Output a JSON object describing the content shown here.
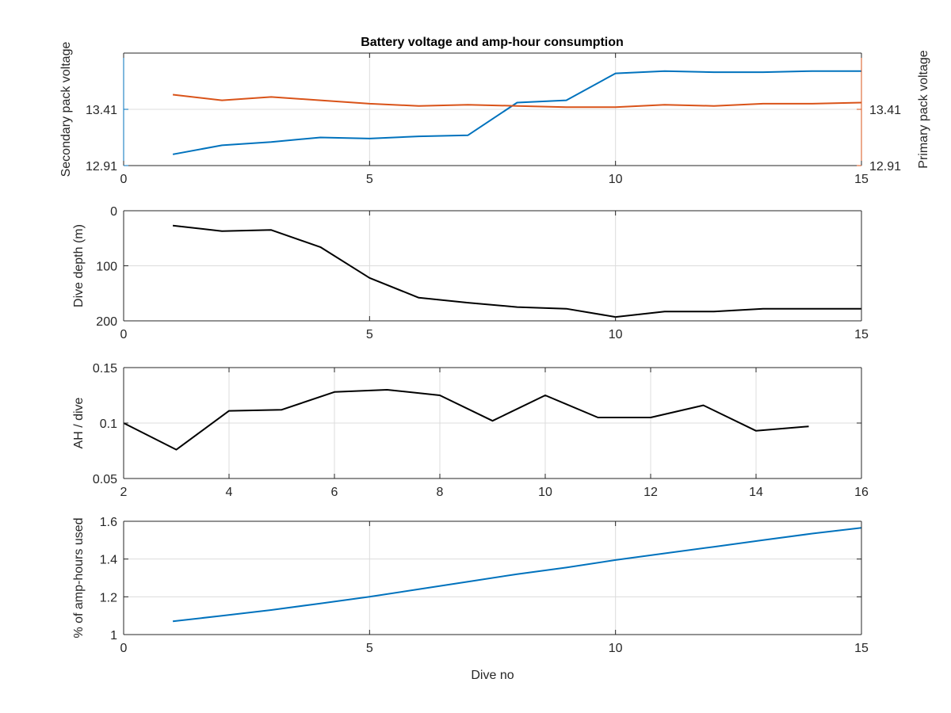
{
  "chart_data": [
    {
      "type": "line",
      "title": "Battery voltage and amp-hour consumption",
      "xlabel": "",
      "ylabel": "Secondary pack voltage",
      "ylabel_right": "Primary pack voltage",
      "xlim": [
        0,
        15
      ],
      "ylim": [
        12.91,
        13.91
      ],
      "ylim_right": [
        12.91,
        13.91
      ],
      "xticks": [
        "0",
        "5",
        "10",
        "15"
      ],
      "yticks": [
        "12.91",
        "13.41"
      ],
      "yticks_right": [
        "12.91",
        "13.41"
      ],
      "grid": true,
      "series": [
        {
          "axis": "left",
          "color": "#0072BD",
          "x": [
            1,
            2,
            3,
            4,
            5,
            6,
            7,
            8,
            9,
            10,
            11,
            12,
            13,
            14,
            15
          ],
          "y": [
            13.01,
            13.09,
            13.12,
            13.16,
            13.15,
            13.17,
            13.18,
            13.47,
            13.49,
            13.73,
            13.75,
            13.74,
            13.74,
            13.75,
            13.75
          ]
        },
        {
          "axis": "right",
          "color": "#D95319",
          "x": [
            1,
            2,
            3,
            4,
            5,
            6,
            7,
            8,
            9,
            10,
            11,
            12,
            13,
            14,
            15
          ],
          "y": [
            13.54,
            13.49,
            13.52,
            13.49,
            13.46,
            13.44,
            13.45,
            13.44,
            13.43,
            13.43,
            13.45,
            13.44,
            13.46,
            13.46,
            13.47
          ]
        }
      ]
    },
    {
      "type": "line",
      "xlabel": "",
      "ylabel": "Dive depth (m)",
      "xlim": [
        0,
        15
      ],
      "ylim": [
        0,
        200
      ],
      "y_reversed": true,
      "xticks": [
        "0",
        "5",
        "10",
        "15"
      ],
      "yticks": [
        "0",
        "100",
        "200"
      ],
      "grid": true,
      "series": [
        {
          "color": "#000000",
          "x": [
            1,
            2,
            3,
            4,
            5,
            6,
            7,
            8,
            9,
            10,
            11,
            12,
            13,
            14,
            15
          ],
          "y": [
            27,
            37,
            35,
            66,
            122,
            158,
            167,
            175,
            178,
            193,
            183,
            183,
            178,
            178,
            178
          ]
        }
      ]
    },
    {
      "type": "line",
      "xlabel": "",
      "ylabel": "AH / dive",
      "xlim": [
        2,
        16
      ],
      "ylim": [
        0.05,
        0.15
      ],
      "xticks": [
        "2",
        "4",
        "6",
        "8",
        "10",
        "12",
        "14",
        "16"
      ],
      "yticks": [
        "0.05",
        "0.1",
        "0.15"
      ],
      "grid": true,
      "series": [
        {
          "color": "#000000",
          "x": [
            2,
            3,
            4,
            5,
            6,
            7,
            8,
            9,
            10,
            11,
            12,
            13,
            14,
            15
          ],
          "y": [
            0.1,
            0.076,
            0.111,
            0.112,
            0.128,
            0.13,
            0.125,
            0.102,
            0.125,
            0.105,
            0.105,
            0.116,
            0.093,
            0.097
          ]
        }
      ]
    },
    {
      "type": "line",
      "xlabel": "Dive no",
      "ylabel": "% of amp-hours used",
      "xlim": [
        0,
        15
      ],
      "ylim": [
        1,
        1.6
      ],
      "xticks": [
        "0",
        "5",
        "10",
        "15"
      ],
      "yticks": [
        "1",
        "1.2",
        "1.4",
        "1.6"
      ],
      "grid": true,
      "series": [
        {
          "color": "#0072BD",
          "x": [
            1,
            2,
            3,
            4,
            5,
            6,
            7,
            8,
            9,
            10,
            11,
            12,
            13,
            14,
            15
          ],
          "y": [
            1.07,
            1.1,
            1.13,
            1.165,
            1.2,
            1.24,
            1.28,
            1.32,
            1.355,
            1.395,
            1.43,
            1.465,
            1.5,
            1.535,
            1.565
          ]
        }
      ]
    }
  ]
}
